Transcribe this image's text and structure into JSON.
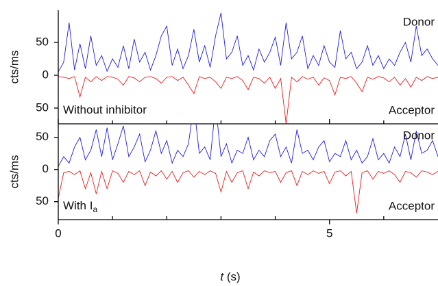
{
  "chart_data": [
    {
      "type": "line",
      "ylabel": "cts/ms",
      "annotation": "Without inhibitor",
      "xlim": [
        0,
        7
      ],
      "ylim": [
        -74,
        99
      ],
      "yticks": [
        {
          "value": -50,
          "label": "50"
        },
        0,
        50
      ],
      "x": [
        0,
        0.1,
        0.2,
        0.3,
        0.4,
        0.5,
        0.6,
        0.7,
        0.8,
        0.9,
        1,
        1.1,
        1.2,
        1.3,
        1.4,
        1.5,
        1.6,
        1.7,
        1.8,
        1.9,
        2,
        2.1,
        2.2,
        2.3,
        2.4,
        2.5,
        2.6,
        2.7,
        2.8,
        2.9,
        3,
        3.1,
        3.2,
        3.3,
        3.4,
        3.5,
        3.6,
        3.7,
        3.8,
        3.9,
        4,
        4.1,
        4.2,
        4.3,
        4.4,
        4.5,
        4.6,
        4.7,
        4.8,
        4.9,
        5,
        5.1,
        5.2,
        5.3,
        5.4,
        5.5,
        5.6,
        5.7,
        5.8,
        5.9,
        6,
        6.1,
        6.2,
        6.3,
        6.4,
        6.5,
        6.6,
        6.7,
        6.8,
        6.9,
        7
      ],
      "series": [
        {
          "name": "Donor",
          "color": "#1a1aee",
          "values": [
            5,
            20,
            80,
            8,
            48,
            10,
            60,
            15,
            30,
            6,
            25,
            12,
            45,
            10,
            55,
            20,
            35,
            8,
            30,
            60,
            75,
            15,
            40,
            10,
            30,
            70,
            20,
            45,
            12,
            60,
            95,
            25,
            35,
            60,
            15,
            30,
            8,
            40,
            20,
            35,
            58,
            15,
            80,
            25,
            35,
            60,
            10,
            30,
            15,
            45,
            20,
            12,
            68,
            25,
            35,
            10,
            20,
            45,
            15,
            30,
            10,
            25,
            15,
            35,
            50,
            20,
            75,
            30,
            40,
            25,
            15
          ]
        },
        {
          "name": "Acceptor",
          "color": "#ee1a1a",
          "values": [
            -2,
            -3,
            -5,
            -2,
            -33,
            -3,
            -10,
            -2,
            -8,
            -2,
            -3,
            -6,
            -15,
            -2,
            -4,
            -10,
            -3,
            -2,
            -5,
            -12,
            -3,
            -2,
            -8,
            -3,
            -15,
            -28,
            -2,
            -5,
            -3,
            -10,
            -20,
            -3,
            -5,
            -2,
            -8,
            -22,
            -3,
            -5,
            -12,
            -3,
            -20,
            -5,
            -74,
            -3,
            -10,
            -2,
            -6,
            -3,
            -15,
            -4,
            -8,
            -30,
            -3,
            -5,
            -2,
            -12,
            -25,
            -3,
            -6,
            -2,
            -4,
            -10,
            -3,
            -15,
            -5,
            -18,
            -3,
            -8,
            -2,
            -5,
            -3
          ]
        }
      ]
    },
    {
      "type": "line",
      "ylabel": "cts/ms",
      "annotation": "With I",
      "annotation_subscript": "a",
      "xlabel_var": "t",
      "xlabel_unit": "(s)",
      "xlim": [
        0,
        7
      ],
      "ylim": [
        -78,
        71
      ],
      "xticks": [
        0,
        5
      ],
      "xminorticks": [
        1,
        2,
        3,
        4,
        6
      ],
      "yticks": [
        {
          "value": -50,
          "label": "50"
        },
        0,
        50
      ],
      "x": [
        0,
        0.1,
        0.2,
        0.3,
        0.4,
        0.5,
        0.6,
        0.7,
        0.8,
        0.9,
        1,
        1.1,
        1.2,
        1.3,
        1.4,
        1.5,
        1.6,
        1.7,
        1.8,
        1.9,
        2,
        2.1,
        2.2,
        2.3,
        2.4,
        2.5,
        2.6,
        2.7,
        2.8,
        2.9,
        3,
        3.1,
        3.2,
        3.3,
        3.4,
        3.5,
        3.6,
        3.7,
        3.8,
        3.9,
        4,
        4.1,
        4.2,
        4.3,
        4.4,
        4.5,
        4.6,
        4.7,
        4.8,
        4.9,
        5,
        5.1,
        5.2,
        5.3,
        5.4,
        5.5,
        5.6,
        5.7,
        5.8,
        5.9,
        6,
        6.1,
        6.2,
        6.3,
        6.4,
        6.5,
        6.6,
        6.7,
        6.8,
        6.9,
        7
      ],
      "series": [
        {
          "name": "Donor",
          "color": "#1a1aee",
          "values": [
            5,
            20,
            10,
            35,
            50,
            15,
            30,
            62,
            20,
            65,
            15,
            40,
            68,
            20,
            35,
            55,
            12,
            30,
            60,
            25,
            45,
            10,
            30,
            20,
            40,
            100,
            25,
            35,
            15,
            100,
            20,
            40,
            10,
            30,
            25,
            50,
            15,
            30,
            20,
            45,
            55,
            20,
            35,
            10,
            62,
            25,
            30,
            15,
            35,
            45,
            12,
            25,
            20,
            45,
            15,
            30,
            10,
            20,
            48,
            15,
            25,
            10,
            35,
            20,
            55,
            15,
            60,
            25,
            30,
            45,
            20
          ]
        },
        {
          "name": "Acceptor",
          "color": "#ee1a1a",
          "values": [
            -45,
            -5,
            -3,
            -8,
            -2,
            -30,
            -5,
            -38,
            -3,
            -30,
            -2,
            -6,
            -20,
            -3,
            -8,
            -2,
            -25,
            -4,
            -10,
            -2,
            -15,
            -3,
            -20,
            -5,
            -2,
            -12,
            -3,
            -8,
            -2,
            -6,
            -35,
            -3,
            -20,
            -5,
            -2,
            -30,
            -4,
            -10,
            -2,
            -5,
            -3,
            -20,
            -5,
            -2,
            -25,
            -3,
            -8,
            -2,
            -6,
            -3,
            -22,
            -4,
            -2,
            -10,
            -3,
            -68,
            -5,
            -2,
            -15,
            -3,
            -6,
            -2,
            -8,
            -20,
            -3,
            -5,
            -12,
            -2,
            -4,
            -8,
            -3
          ]
        }
      ]
    }
  ]
}
